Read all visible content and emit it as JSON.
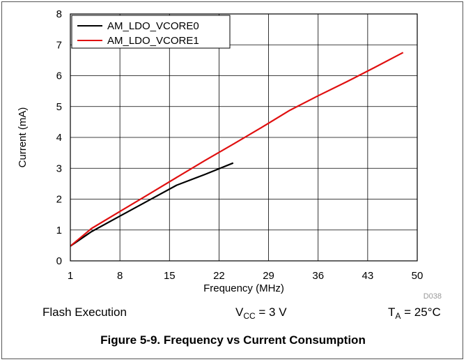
{
  "chart_data": {
    "type": "line",
    "xlabel": "Frequency (MHz)",
    "ylabel": "Current (mA)",
    "xlim": [
      1,
      50
    ],
    "ylim": [
      0,
      8
    ],
    "xticks": [
      1,
      8,
      15,
      22,
      29,
      36,
      43,
      50
    ],
    "yticks": [
      0,
      1,
      2,
      3,
      4,
      5,
      6,
      7,
      8
    ],
    "grid": true,
    "legend_position": "top-left",
    "series": [
      {
        "name": "AM_LDO_VCORE0",
        "color": "#000000",
        "x": [
          1,
          4,
          8,
          12,
          16,
          20,
          24
        ],
        "y": [
          0.48,
          0.95,
          1.45,
          1.95,
          2.45,
          2.8,
          3.17
        ]
      },
      {
        "name": "AM_LDO_VCORE1",
        "color": "#e01010",
        "x": [
          1,
          4,
          8,
          12,
          16,
          20,
          24,
          28,
          32,
          36,
          40,
          44,
          48
        ],
        "y": [
          0.48,
          1.05,
          1.6,
          2.15,
          2.7,
          3.25,
          3.78,
          4.32,
          4.88,
          5.35,
          5.8,
          6.27,
          6.75
        ]
      }
    ],
    "annotation": "D038"
  },
  "conditions": {
    "mode": "Flash Execution",
    "vcc_prefix": "V",
    "vcc_sub": "CC",
    "vcc_value": " = 3 V",
    "ta_prefix": "T",
    "ta_sub": "A",
    "ta_value": " = 25°C"
  },
  "caption": "Figure 5-9. Frequency vs Current Consumption"
}
